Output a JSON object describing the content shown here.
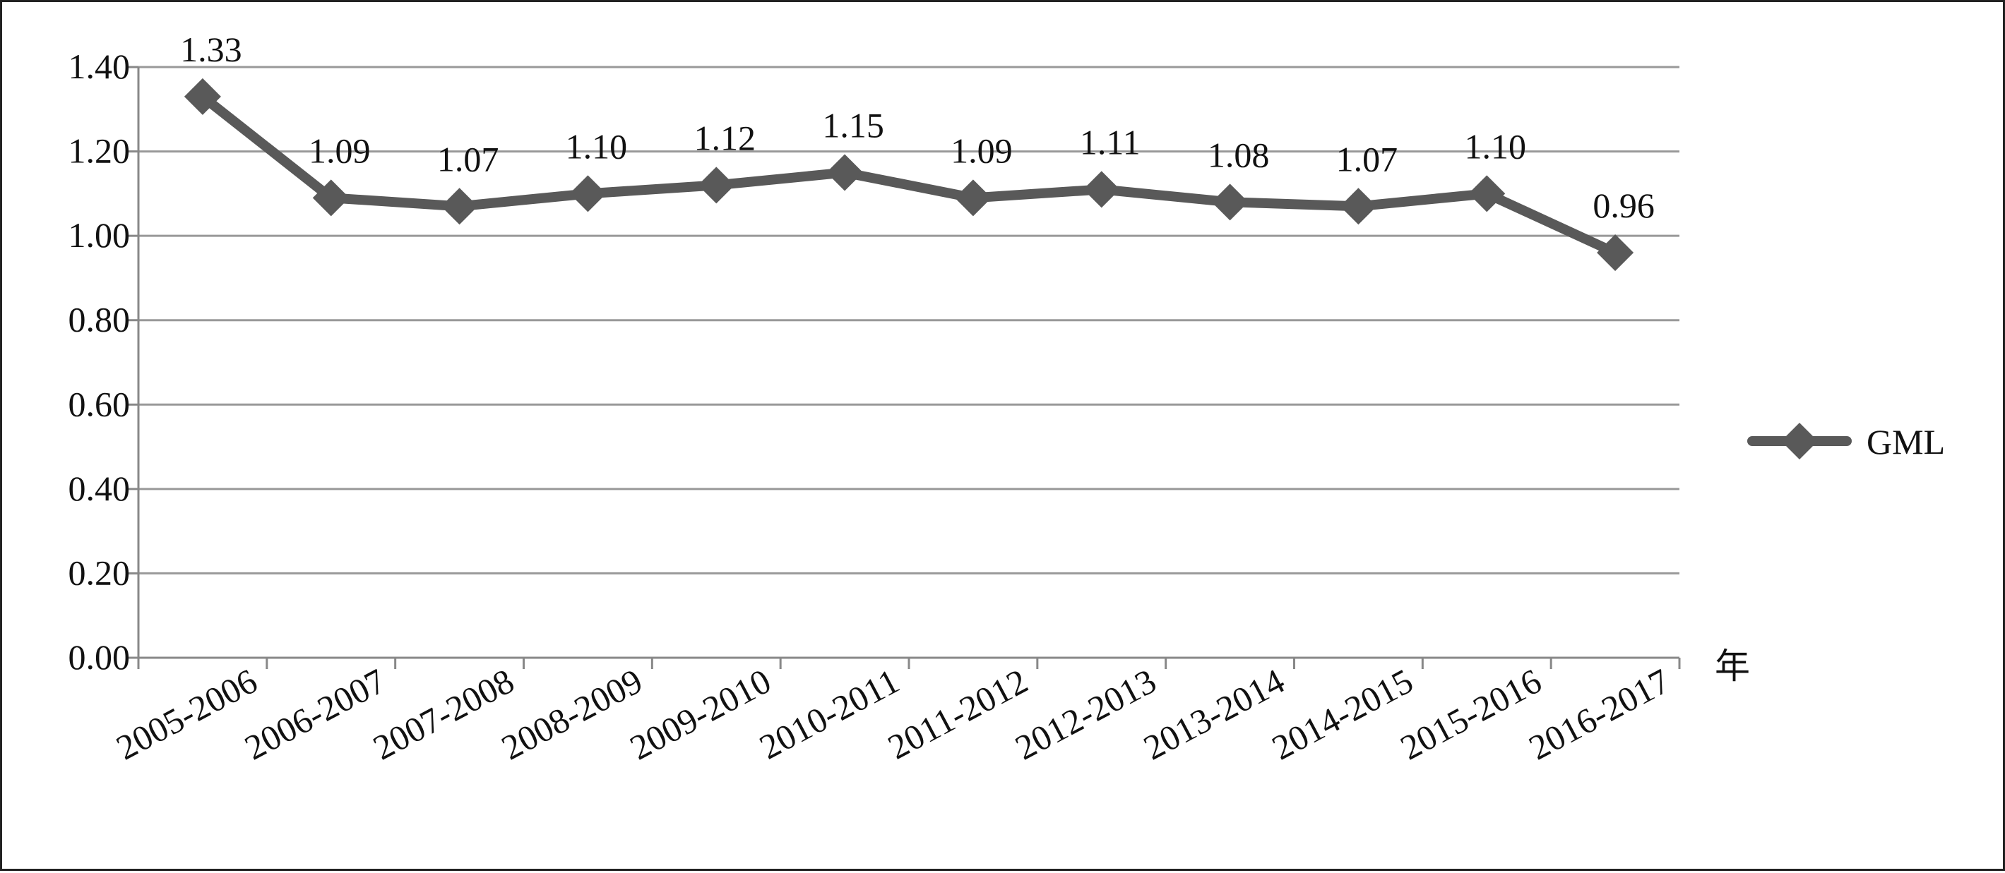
{
  "chart_data": {
    "type": "line",
    "categories": [
      "2005-2006",
      "2006-2007",
      "2007-2008",
      "2008-2009",
      "2009-2010",
      "2010-2011",
      "2011-2012",
      "2012-2013",
      "2013-2014",
      "2014-2015",
      "2015-2016",
      "2016-2017"
    ],
    "series": [
      {
        "name": "GML",
        "values": [
          1.33,
          1.09,
          1.07,
          1.1,
          1.12,
          1.15,
          1.09,
          1.11,
          1.08,
          1.07,
          1.1,
          0.96
        ],
        "labels": [
          "1.33",
          "1.09",
          "1.07",
          "1.10",
          "1.12",
          "1.15",
          "1.09",
          "1.11",
          "1.08",
          "1.07",
          "1.10",
          "0.96"
        ],
        "color": "#595959",
        "marker": "diamond"
      }
    ],
    "x_unit": "年",
    "ylim": [
      0,
      1.4
    ],
    "y_ticks": [
      "0.00",
      "0.20",
      "0.40",
      "0.60",
      "0.80",
      "1.00",
      "1.20",
      "1.40"
    ],
    "grid": "horizontal",
    "legend": "right",
    "gridline_color": "#999999",
    "axis_color": "#888888"
  }
}
